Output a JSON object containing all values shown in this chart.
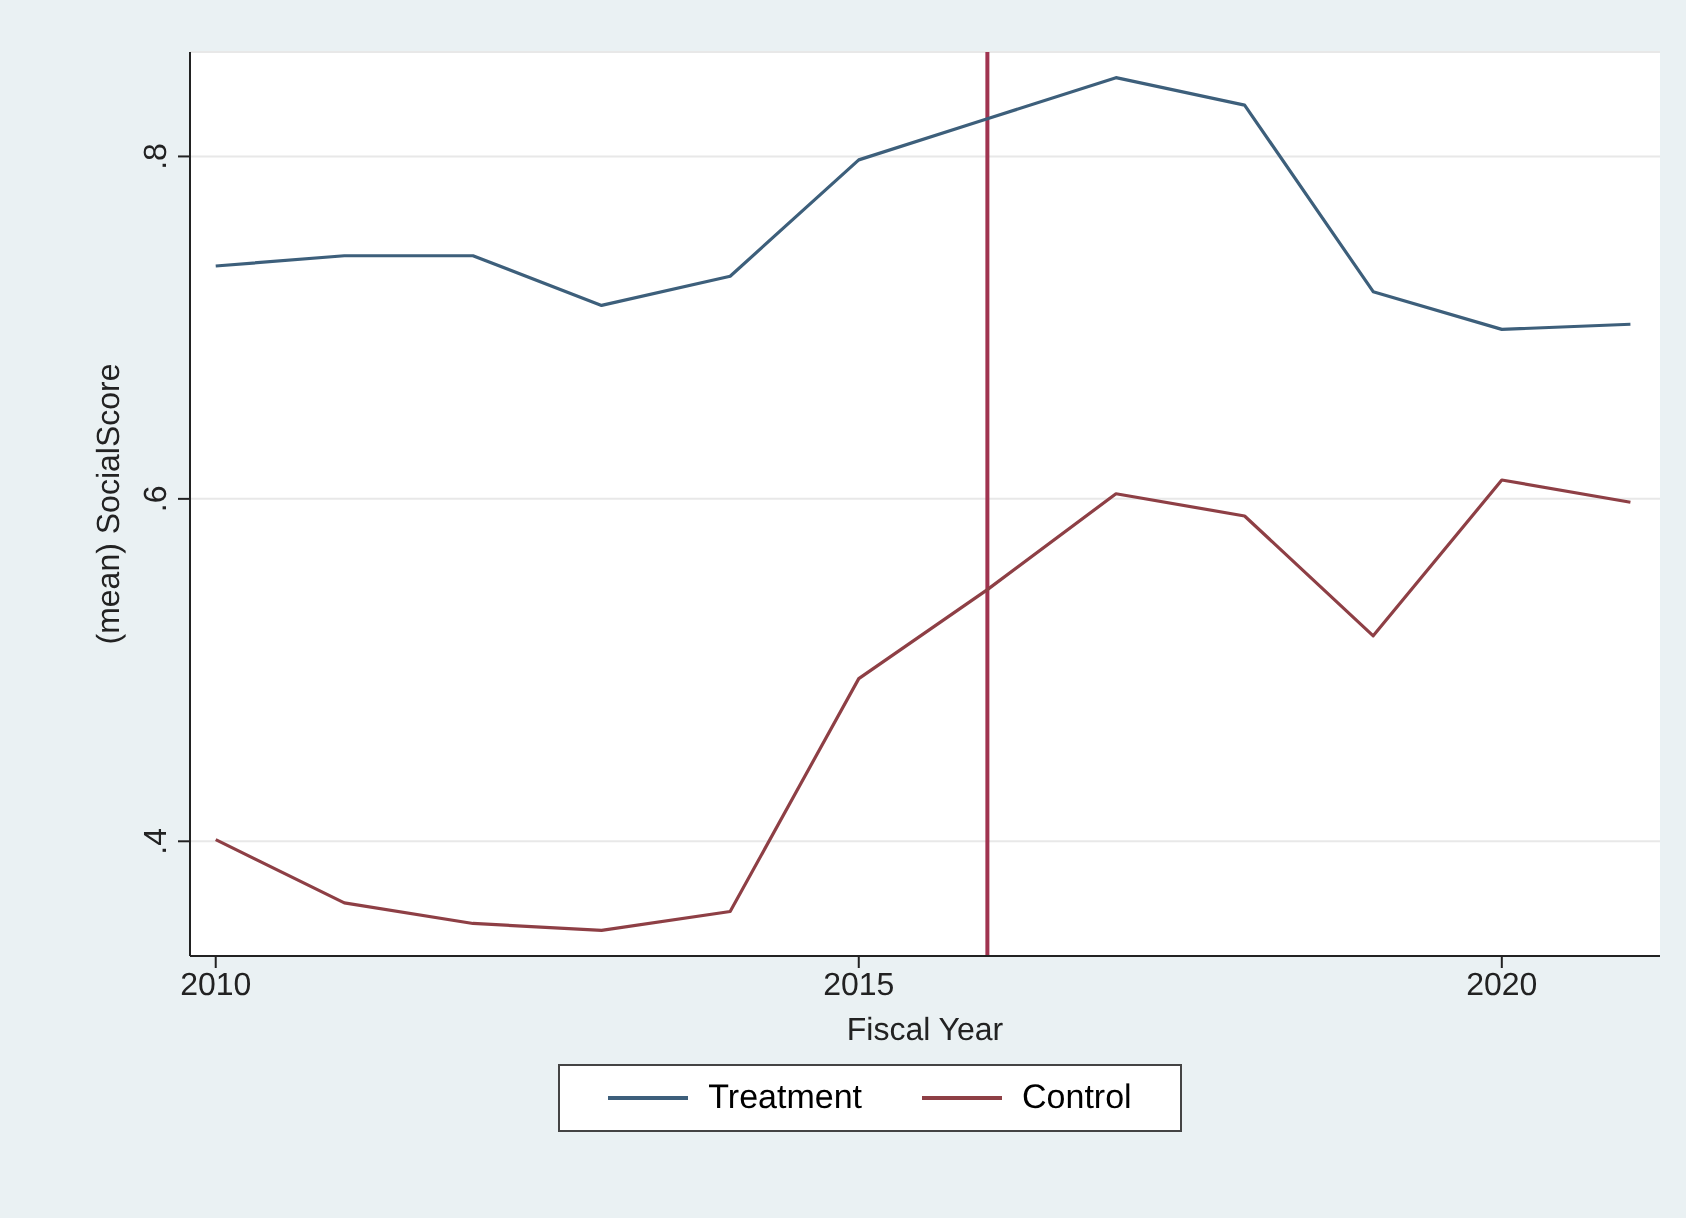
{
  "chart_data": {
    "type": "line",
    "xlabel": "Fiscal Year",
    "ylabel": "(mean) SocialScore",
    "x": [
      2010,
      2011,
      2012,
      2013,
      2014,
      2015,
      2016,
      2017,
      2018,
      2019,
      2020,
      2021
    ],
    "series": [
      {
        "name": "Treatment",
        "color": "#3d5f7b",
        "values": [
          0.736,
          0.742,
          0.742,
          0.713,
          0.73,
          0.798,
          0.822,
          0.846,
          0.83,
          0.721,
          0.699,
          0.702
        ]
      },
      {
        "name": "Control",
        "color": "#8e3f45",
        "values": [
          0.401,
          0.364,
          0.352,
          0.348,
          0.359,
          0.495,
          0.547,
          0.603,
          0.59,
          0.52,
          0.611,
          0.598
        ]
      }
    ],
    "xlim": [
      2009.8,
      2021.23
    ],
    "xticks": [
      2010,
      2015,
      2020
    ],
    "ylim": [
      0.333,
      0.861
    ],
    "yticks": [
      {
        "value": 0.4,
        "label": ".4"
      },
      {
        "value": 0.6,
        "label": ".6"
      },
      {
        "value": 0.8,
        "label": ".8"
      }
    ],
    "ref_lines": [
      {
        "axis": "x",
        "value": 2016,
        "color": "#a03450"
      }
    ],
    "grid": "y",
    "legend": "bottom",
    "marker": "none",
    "line_style": "solid"
  }
}
